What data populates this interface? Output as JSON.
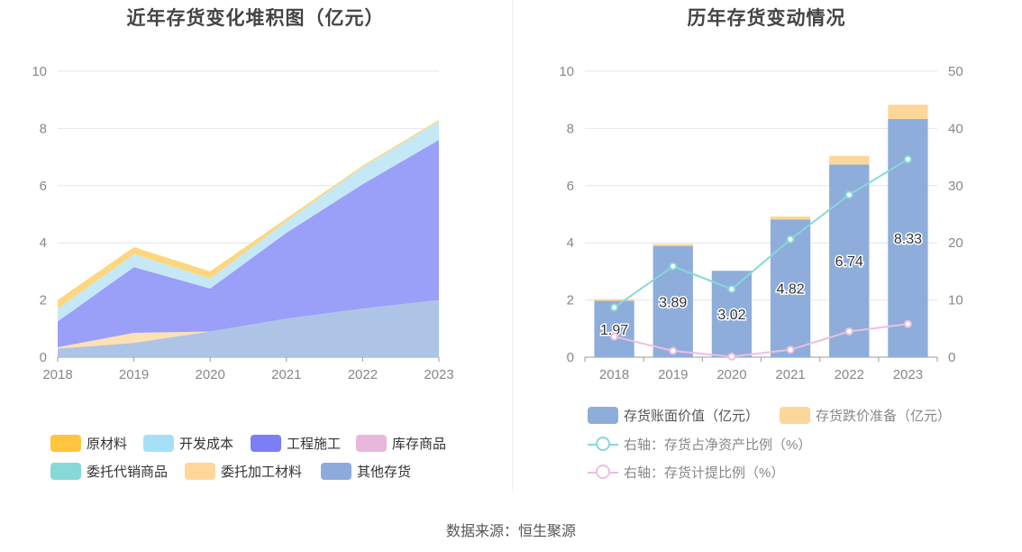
{
  "source_label": "数据来源：恒生聚源",
  "chart_data": [
    {
      "type": "area",
      "title": "近年存货变化堆积图（亿元）",
      "x": [
        "2018",
        "2019",
        "2020",
        "2021",
        "2022",
        "2023"
      ],
      "ylim": [
        0,
        10
      ],
      "yticks": [
        "0",
        "2",
        "4",
        "6",
        "8",
        "10"
      ],
      "stacked": true,
      "grid": true,
      "legend_position": "bottom",
      "series": [
        {
          "name": "其他存货",
          "color": "#aec4e6",
          "values": [
            0.3,
            0.5,
            0.9,
            1.35,
            1.7,
            2.0
          ]
        },
        {
          "name": "委托加工材料",
          "color": "#fde0b4",
          "values": [
            0.05,
            0.35,
            0.0,
            0.0,
            0.0,
            0.0
          ]
        },
        {
          "name": "委托代销商品",
          "color": "#88d8d8",
          "values": [
            0.0,
            0.0,
            0.0,
            0.0,
            0.0,
            0.0
          ]
        },
        {
          "name": "库存商品",
          "color": "#e8b8dc",
          "values": [
            0.0,
            0.0,
            0.0,
            0.0,
            0.0,
            0.0
          ]
        },
        {
          "name": "工程施工",
          "color": "#9a9ff7",
          "values": [
            0.9,
            2.3,
            1.5,
            3.0,
            4.35,
            5.6
          ]
        },
        {
          "name": "开发成本",
          "color": "#c5e8f7",
          "values": [
            0.45,
            0.45,
            0.35,
            0.4,
            0.6,
            0.65
          ]
        },
        {
          "name": "原材料",
          "color": "#fcd77e",
          "values": [
            0.3,
            0.25,
            0.25,
            0.1,
            0.05,
            0.05
          ]
        }
      ],
      "legend": [
        {
          "name": "原材料",
          "color": "#ffc53d"
        },
        {
          "name": "开发成本",
          "color": "#a6e0f7"
        },
        {
          "name": "工程施工",
          "color": "#7b7ef5"
        },
        {
          "name": "库存商品",
          "color": "#e8b8dc"
        },
        {
          "name": "委托代销商品",
          "color": "#88d8d8"
        },
        {
          "name": "委托加工材料",
          "color": "#ffd799"
        },
        {
          "name": "其他存货",
          "color": "#8eaadc"
        }
      ]
    },
    {
      "type": "bar",
      "title": "历年存货变动情况",
      "categories": [
        "2018",
        "2019",
        "2020",
        "2021",
        "2022",
        "2023"
      ],
      "ylim": [
        0,
        10
      ],
      "yticks": [
        "0",
        "2",
        "4",
        "6",
        "8",
        "10"
      ],
      "y2lim": [
        0,
        50
      ],
      "y2ticks": [
        "0",
        "10",
        "20",
        "30",
        "40",
        "50"
      ],
      "stacked": true,
      "grid": true,
      "legend_position": "bottom",
      "series": [
        {
          "name": "存货账面价值（亿元）",
          "axis": "left",
          "kind": "bar",
          "color": "#8eaddb",
          "values": [
            1.97,
            3.89,
            3.02,
            4.82,
            6.74,
            8.33
          ],
          "labels": [
            "1.97",
            "3.89",
            "3.02",
            "4.82",
            "6.74",
            "8.33"
          ]
        },
        {
          "name": "存货跌价准备（亿元）",
          "axis": "left",
          "kind": "bar",
          "color": "#fcd79a",
          "values": [
            0.06,
            0.07,
            0.0,
            0.1,
            0.3,
            0.5
          ]
        },
        {
          "name": "右轴：存货占净资产比例（%）",
          "axis": "right",
          "kind": "line",
          "color": "#88d8d8",
          "values": [
            8.7,
            15.9,
            11.9,
            20.6,
            28.4,
            34.6
          ]
        },
        {
          "name": "右轴：存货计提比例（%）",
          "axis": "right",
          "kind": "line",
          "color": "#ecbfdf",
          "values": [
            3.6,
            1.1,
            0.1,
            1.3,
            4.5,
            5.8
          ]
        }
      ]
    }
  ]
}
